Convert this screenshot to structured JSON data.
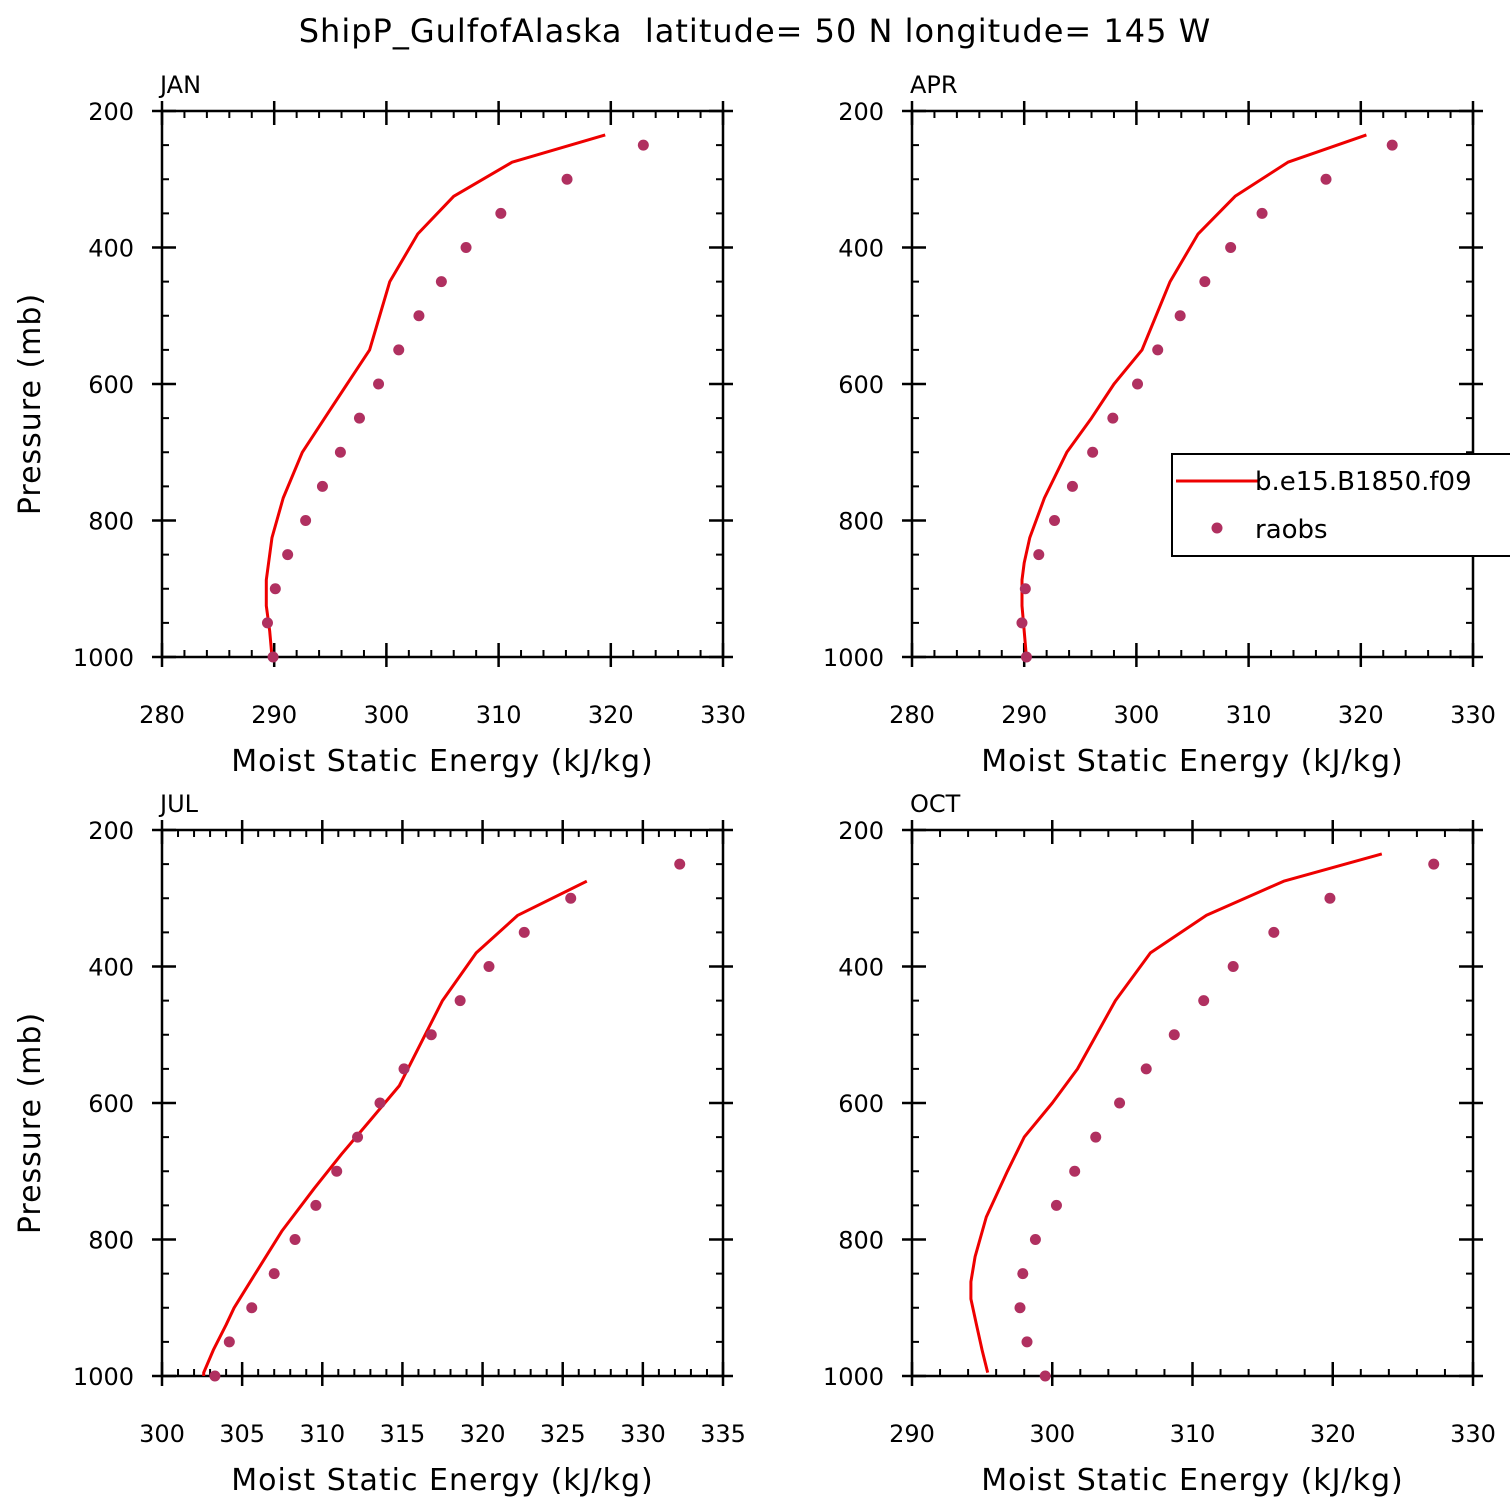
{
  "title": "ShipP_GulfofAlaska  latitude= 50 N longitude= 145 W",
  "colors": {
    "model": "#ee0000",
    "obs": "#b03060",
    "axis": "#000000"
  },
  "legend": {
    "series": [
      "b.e15.B1850.f09",
      "raobs"
    ]
  },
  "chart_data": [
    {
      "type": "line",
      "panel": "JAN",
      "xlabel": "Moist Static Energy (kJ/kg)",
      "ylabel": "Pressure (mb)",
      "xlim": [
        280,
        330
      ],
      "ylim": [
        1000,
        200
      ],
      "xticks": [
        280,
        290,
        300,
        310,
        320,
        330
      ],
      "yticks": [
        200,
        400,
        600,
        800,
        1000
      ],
      "series": [
        {
          "name": "b.e15.B1850.f09",
          "style": "line",
          "x": [
            289.8,
            289.6,
            289.3,
            289.3,
            289.5,
            289.8,
            290.8,
            292.5,
            294.5,
            296.5,
            298.5,
            300.3,
            302.8,
            306.0,
            311.2,
            319.5
          ],
          "y": [
            1000,
            962,
            925,
            887,
            862,
            825,
            767,
            700,
            650,
            600,
            550,
            450,
            380,
            325,
            275,
            235
          ]
        },
        {
          "name": "raobs",
          "style": "markers",
          "x": [
            289.9,
            289.4,
            290.1,
            291.2,
            292.8,
            294.3,
            295.9,
            297.6,
            299.3,
            301.1,
            302.9,
            304.9,
            307.1,
            310.2,
            316.1,
            322.9
          ],
          "y": [
            1000,
            950,
            900,
            850,
            800,
            750,
            700,
            650,
            600,
            550,
            500,
            450,
            400,
            350,
            300,
            250
          ]
        }
      ]
    },
    {
      "type": "line",
      "panel": "APR",
      "xlabel": "Moist Static Energy (kJ/kg)",
      "ylabel": "",
      "xlim": [
        280,
        330
      ],
      "ylim": [
        1000,
        200
      ],
      "xticks": [
        280,
        290,
        300,
        310,
        320,
        330
      ],
      "yticks": [
        200,
        400,
        600,
        800,
        1000
      ],
      "series": [
        {
          "name": "b.e15.B1850.f09",
          "style": "line",
          "x": [
            290.2,
            290.0,
            289.8,
            289.8,
            290.0,
            290.5,
            291.8,
            293.8,
            296.0,
            298.0,
            300.5,
            303.0,
            305.5,
            308.8,
            313.5,
            320.5
          ],
          "y": [
            1000,
            962,
            925,
            887,
            862,
            825,
            767,
            700,
            650,
            600,
            550,
            450,
            380,
            325,
            275,
            235
          ]
        },
        {
          "name": "raobs",
          "style": "markers",
          "x": [
            290.2,
            289.8,
            290.1,
            291.3,
            292.7,
            294.3,
            296.1,
            297.9,
            300.1,
            301.9,
            303.9,
            306.1,
            308.4,
            311.2,
            316.9,
            322.8
          ],
          "y": [
            1000,
            950,
            900,
            850,
            800,
            750,
            700,
            650,
            600,
            550,
            500,
            450,
            400,
            350,
            300,
            250
          ]
        }
      ]
    },
    {
      "type": "line",
      "panel": "JUL",
      "xlabel": "Moist Static Energy (kJ/kg)",
      "ylabel": "Pressure (mb)",
      "xlim": [
        300,
        335
      ],
      "ylim": [
        1000,
        200
      ],
      "xticks": [
        300,
        305,
        310,
        315,
        320,
        325,
        330,
        335
      ],
      "yticks": [
        200,
        400,
        600,
        800,
        1000
      ],
      "series": [
        {
          "name": "b.e15.B1850.f09",
          "style": "line",
          "x": [
            302.6,
            302.6,
            303.2,
            304.0,
            304.5,
            305.5,
            307.5,
            309.5,
            311.2,
            313.0,
            314.8,
            317.5,
            319.6,
            322.2,
            326.5
          ],
          "y": [
            1015,
            995,
            962,
            925,
            900,
            862,
            787,
            725,
            675,
            625,
            575,
            450,
            380,
            325,
            275
          ]
        },
        {
          "name": "raobs",
          "style": "markers",
          "x": [
            303.3,
            304.2,
            305.6,
            307.0,
            308.3,
            309.6,
            310.9,
            312.2,
            313.6,
            315.1,
            316.8,
            318.6,
            320.4,
            322.6,
            325.5,
            332.3
          ],
          "y": [
            1000,
            950,
            900,
            850,
            800,
            750,
            700,
            650,
            600,
            550,
            500,
            450,
            400,
            350,
            300,
            250
          ]
        }
      ]
    },
    {
      "type": "line",
      "panel": "OCT",
      "xlabel": "Moist Static Energy (kJ/kg)",
      "ylabel": "",
      "xlim": [
        290,
        330
      ],
      "ylim": [
        1000,
        200
      ],
      "xticks": [
        290,
        300,
        310,
        320,
        330
      ],
      "yticks": [
        200,
        400,
        600,
        800,
        1000
      ],
      "series": [
        {
          "name": "b.e15.B1850.f09",
          "style": "line",
          "x": [
            295.4,
            295.0,
            294.6,
            294.2,
            294.2,
            294.5,
            295.3,
            296.8,
            298.0,
            300.0,
            301.8,
            304.5,
            307.0,
            311.0,
            316.5,
            323.5
          ],
          "y": [
            995,
            962,
            925,
            887,
            862,
            825,
            767,
            700,
            650,
            600,
            550,
            450,
            380,
            325,
            275,
            235
          ]
        },
        {
          "name": "raobs",
          "style": "markers",
          "x": [
            299.5,
            298.2,
            297.7,
            297.9,
            298.8,
            300.3,
            301.6,
            303.1,
            304.8,
            306.7,
            308.7,
            310.8,
            312.9,
            315.8,
            319.8,
            327.2
          ],
          "y": [
            1000,
            950,
            900,
            850,
            800,
            750,
            700,
            650,
            600,
            550,
            500,
            450,
            400,
            350,
            300,
            250
          ]
        }
      ]
    }
  ]
}
